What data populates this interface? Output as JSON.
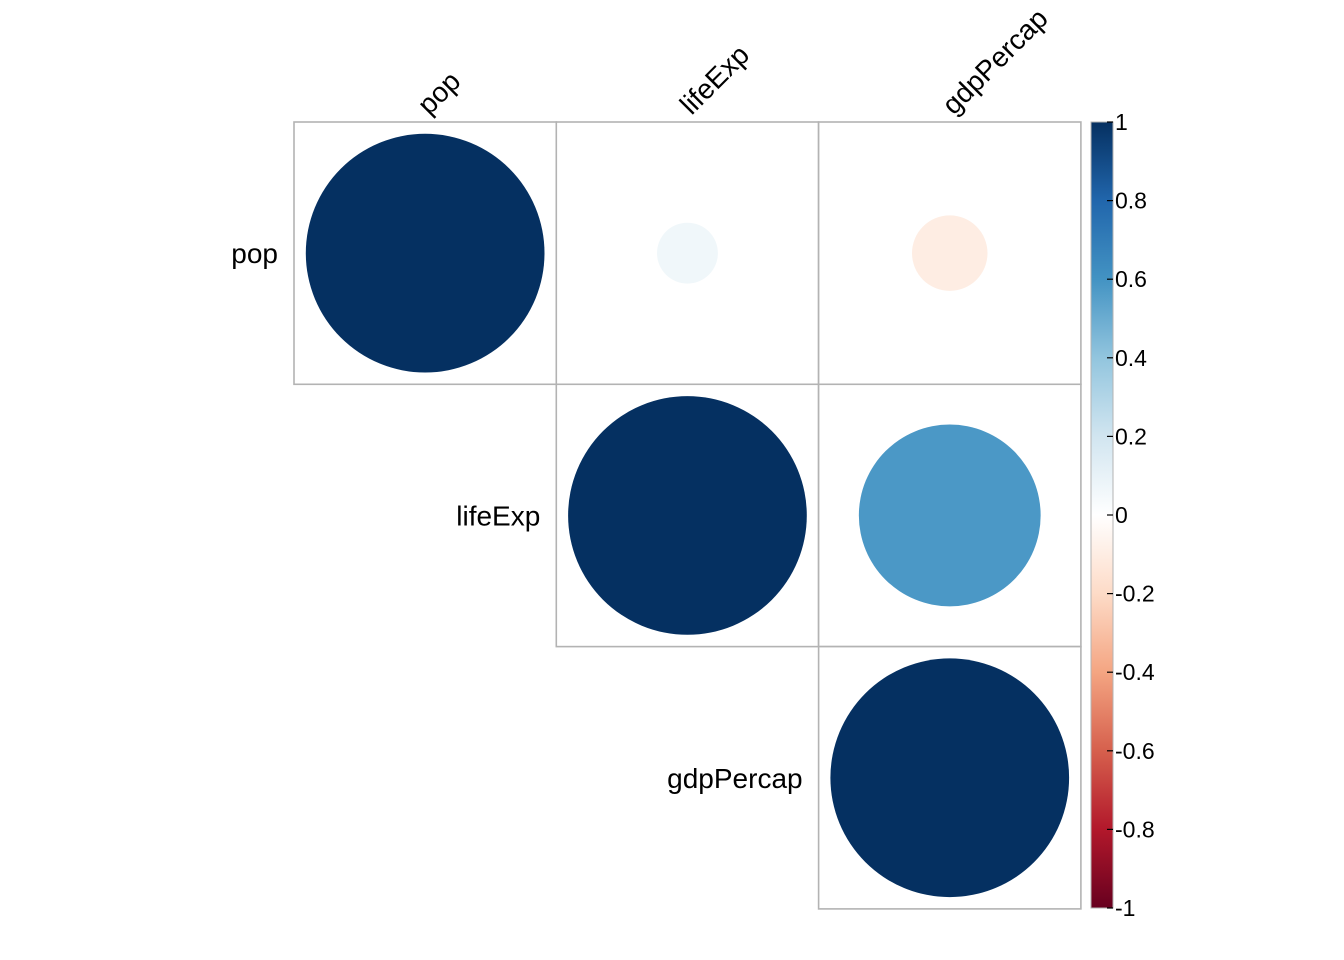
{
  "chart_data": {
    "type": "heatmap",
    "style": "corrplot-circle-upper",
    "variables": [
      "pop",
      "lifeExp",
      "gdpPercap"
    ],
    "matrix": [
      [
        1,
        0.065,
        -0.1
      ],
      [
        0.065,
        1,
        0.58
      ],
      [
        -0.1,
        0.58,
        1
      ]
    ],
    "triangle": "upper",
    "colorbar": {
      "range": [
        -1,
        1
      ],
      "ticks": [
        "1",
        "0.8",
        "0.6",
        "0.4",
        "0.2",
        "0",
        "-0.2",
        "-0.4",
        "-0.6",
        "-0.8",
        "-1"
      ],
      "tick_values": [
        1,
        0.8,
        0.6,
        0.4,
        0.2,
        0,
        -0.2,
        -0.4,
        -0.6,
        -0.8,
        -1
      ],
      "stops": [
        {
          "v": -1.0,
          "color": "#67001f"
        },
        {
          "v": -0.8,
          "color": "#b2182b"
        },
        {
          "v": -0.6,
          "color": "#d6604d"
        },
        {
          "v": -0.4,
          "color": "#f4a582"
        },
        {
          "v": -0.2,
          "color": "#fddbc7"
        },
        {
          "v": 0.0,
          "color": "#ffffff"
        },
        {
          "v": 0.2,
          "color": "#d1e5f0"
        },
        {
          "v": 0.4,
          "color": "#92c5de"
        },
        {
          "v": 0.6,
          "color": "#4393c3"
        },
        {
          "v": 0.8,
          "color": "#2166ac"
        },
        {
          "v": 1.0,
          "color": "#053061"
        }
      ],
      "placement": "right"
    },
    "colors": {
      "grid": "#b3b3b3",
      "tick_mark": "#000000"
    }
  }
}
